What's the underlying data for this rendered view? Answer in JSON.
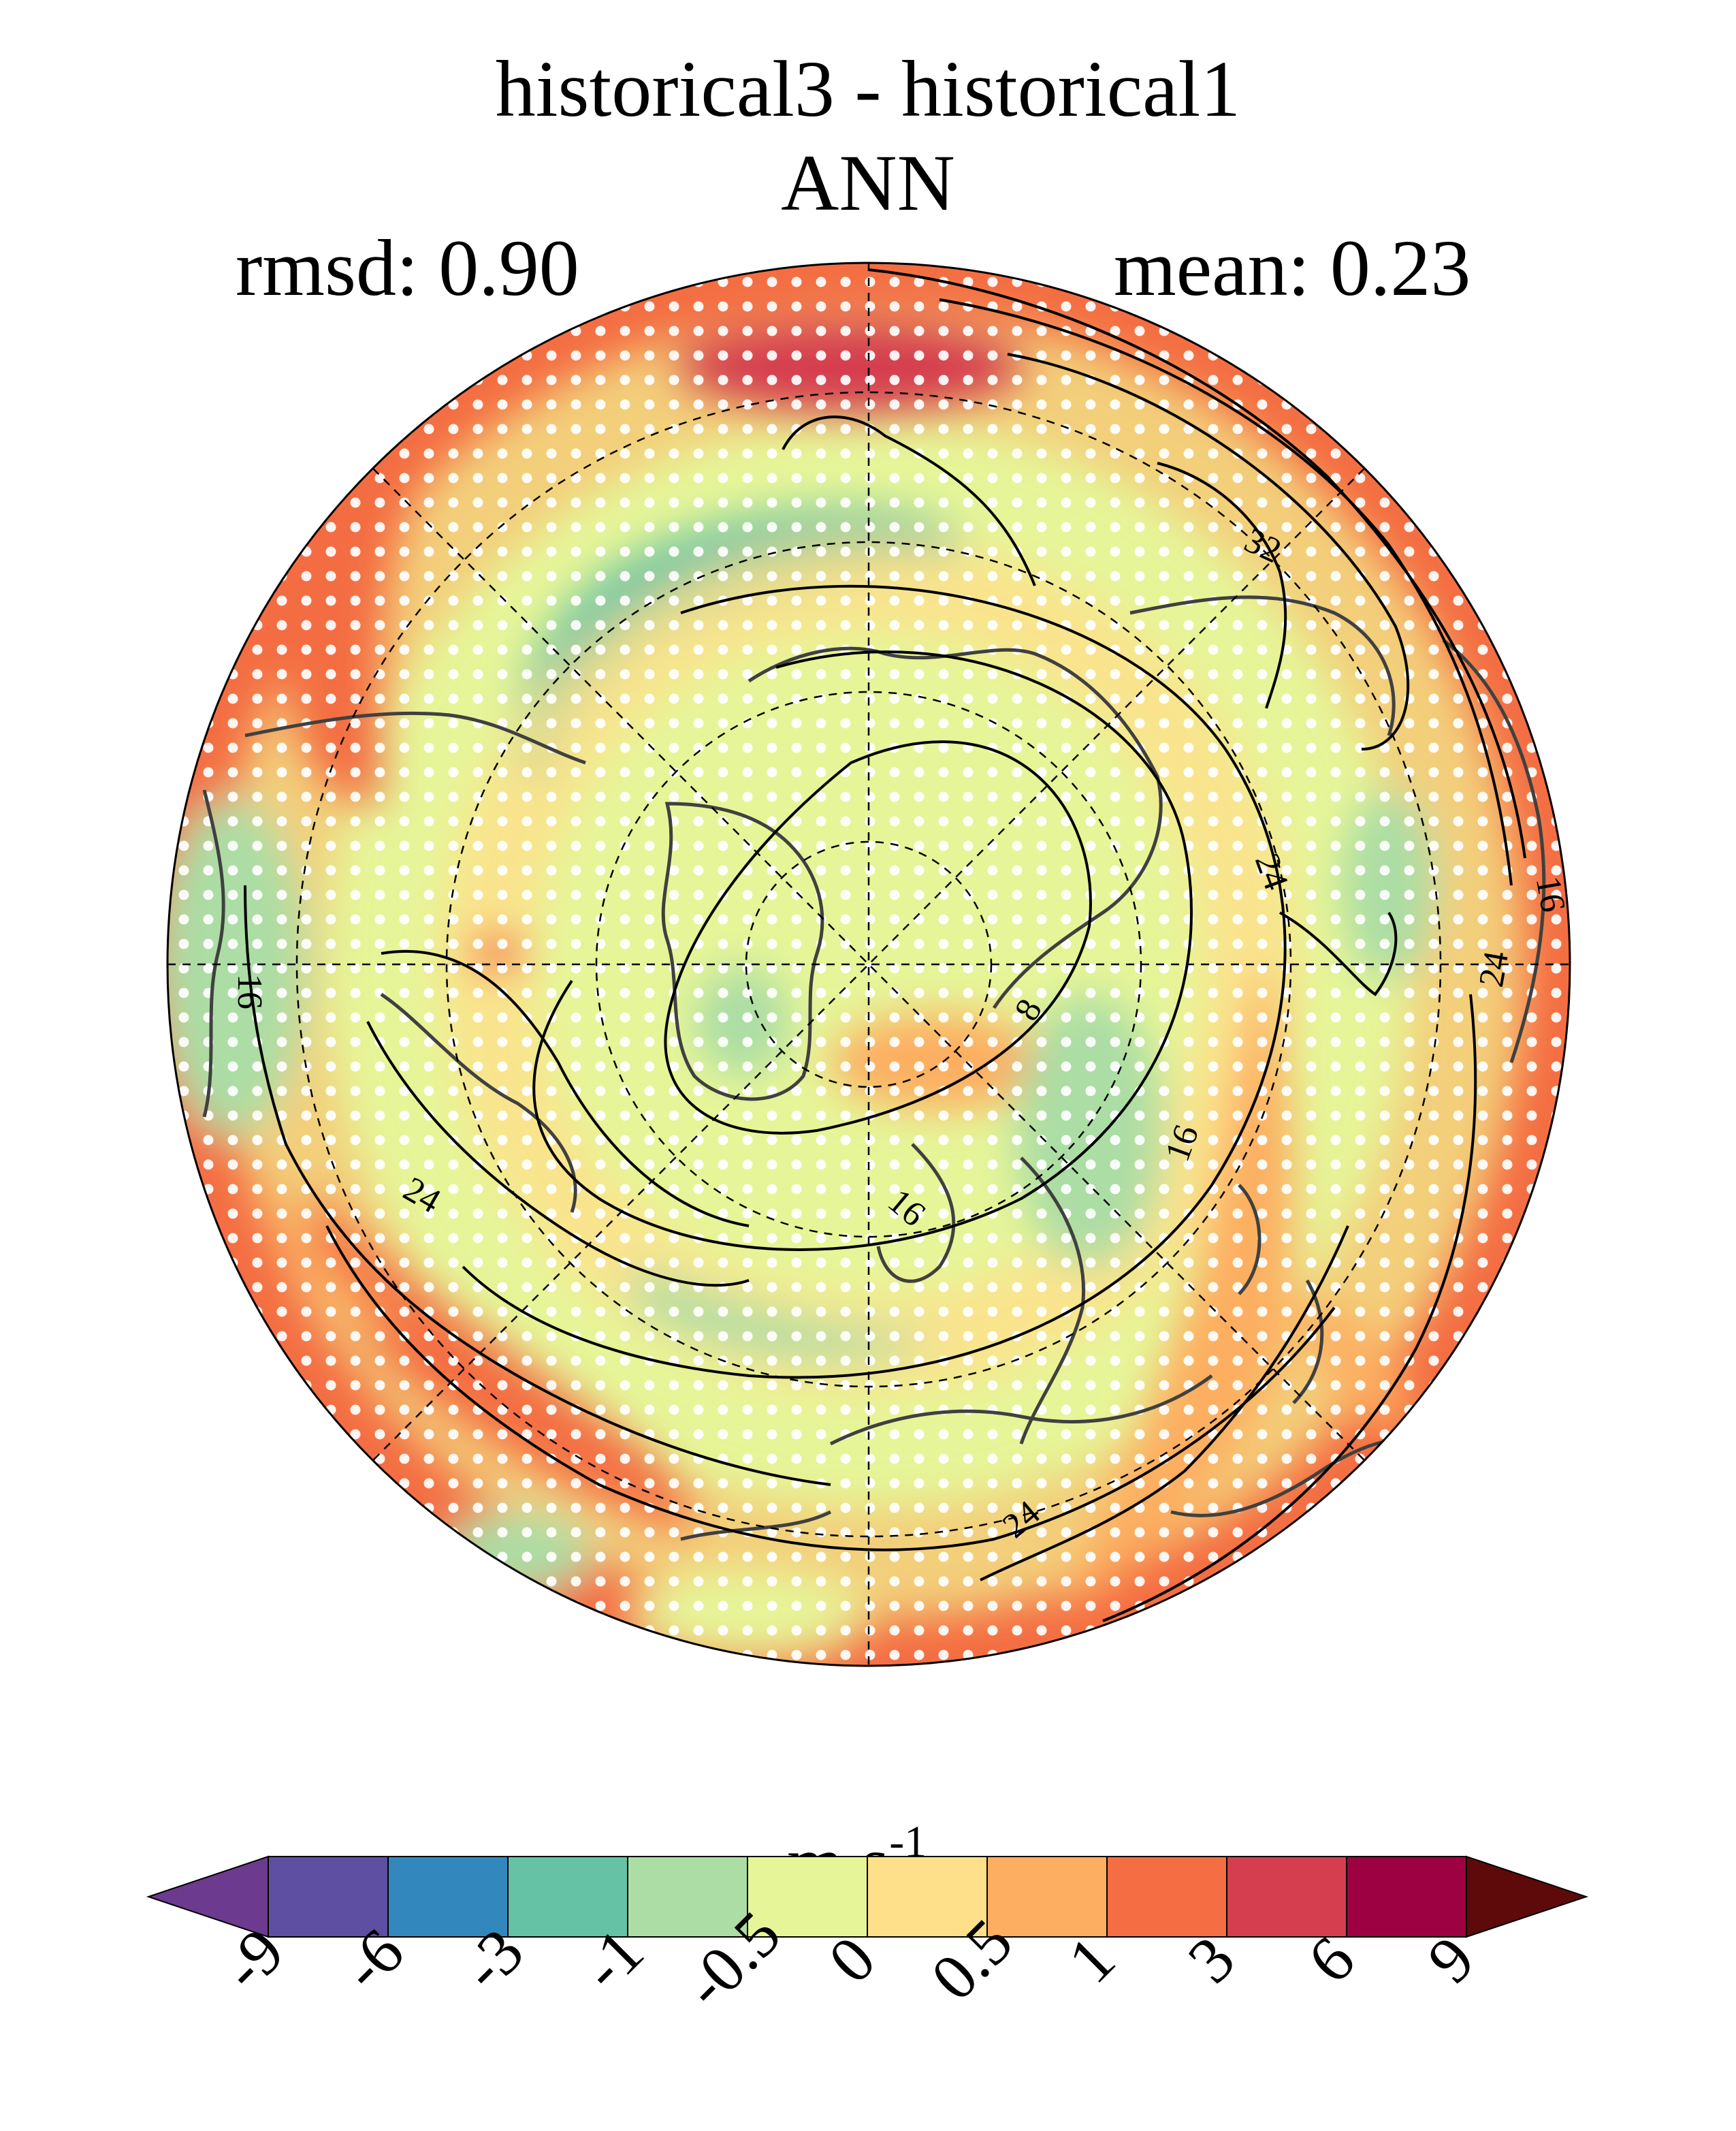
{
  "header": {
    "title": "historical3 - historical1",
    "subtitle": "ANN",
    "rmsd": "rmsd: 0.90",
    "mean": "mean: 0.23"
  },
  "map": {
    "projection": "north-polar-stereographic",
    "stippling": "white dots mark significant differences",
    "contour_labels": [
      "32",
      "24",
      "16",
      "8",
      "16",
      "24",
      "16",
      "24",
      "16",
      "24",
      "16",
      "24"
    ]
  },
  "colorbar": {
    "units_main": "m s",
    "units_exp": "-1",
    "tick_labels": [
      "-9",
      "-6",
      "-3",
      "-1",
      "-0.5",
      "0",
      "0.5",
      "1",
      "3",
      "6",
      "9"
    ],
    "colors": [
      "#5e4fa2",
      "#3288bd",
      "#66c2a5",
      "#abdda4",
      "#e6f598",
      "#fee08b",
      "#fdae61",
      "#f46d43",
      "#d53e4f",
      "#9e0142"
    ],
    "under_color": "#6c3a8f",
    "over_color": "#5e0a0a"
  }
}
